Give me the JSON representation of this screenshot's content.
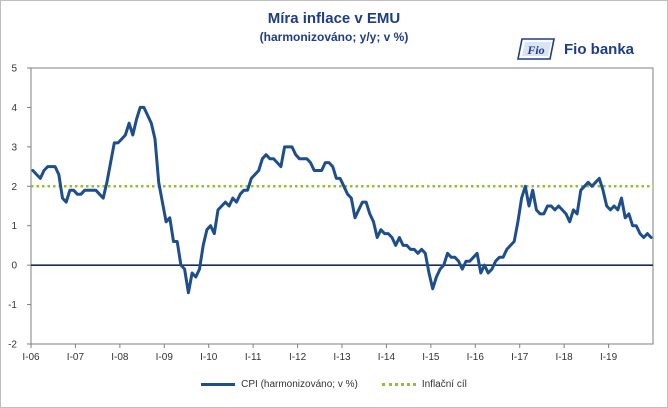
{
  "chart_data": {
    "type": "line",
    "title": "Míra inflace v EMU",
    "subtitle": "(harmonizováno;  y/y; v %)",
    "brand": "Fio banka",
    "ylim": [
      -2,
      5
    ],
    "yticks": [
      "5",
      "4",
      "3",
      "2",
      "1",
      "0",
      "-1",
      "-2"
    ],
    "xticks": [
      "I-06",
      "I-07",
      "I-08",
      "I-09",
      "I-10",
      "I-11",
      "I-12",
      "I-13",
      "I-14",
      "I-15",
      "I-16",
      "I-17",
      "I-18",
      "I-19"
    ],
    "x_start": "2006-01",
    "series": [
      {
        "name": "CPI (harmonizováno; v %)",
        "color": "#1f4e8c",
        "values": [
          2.4,
          2.3,
          2.2,
          2.4,
          2.5,
          2.5,
          2.5,
          2.3,
          1.7,
          1.6,
          1.9,
          1.9,
          1.8,
          1.8,
          1.9,
          1.9,
          1.9,
          1.9,
          1.8,
          1.7,
          2.1,
          2.6,
          3.1,
          3.1,
          3.2,
          3.3,
          3.6,
          3.3,
          3.7,
          4.0,
          4.0,
          3.8,
          3.6,
          3.2,
          2.1,
          1.6,
          1.1,
          1.2,
          0.6,
          0.6,
          0.0,
          -0.1,
          -0.7,
          -0.2,
          -0.3,
          -0.1,
          0.5,
          0.9,
          1.0,
          0.8,
          1.4,
          1.5,
          1.6,
          1.5,
          1.7,
          1.6,
          1.8,
          1.9,
          1.9,
          2.2,
          2.3,
          2.4,
          2.7,
          2.8,
          2.7,
          2.7,
          2.6,
          2.5,
          3.0,
          3.0,
          3.0,
          2.8,
          2.7,
          2.7,
          2.7,
          2.6,
          2.4,
          2.4,
          2.4,
          2.6,
          2.6,
          2.5,
          2.2,
          2.2,
          2.0,
          1.8,
          1.7,
          1.2,
          1.4,
          1.6,
          1.6,
          1.3,
          1.1,
          0.7,
          0.9,
          0.8,
          0.8,
          0.7,
          0.5,
          0.7,
          0.5,
          0.5,
          0.4,
          0.4,
          0.3,
          0.4,
          0.3,
          -0.2,
          -0.6,
          -0.3,
          -0.1,
          0.0,
          0.3,
          0.2,
          0.2,
          0.1,
          -0.1,
          0.1,
          0.1,
          0.2,
          0.3,
          -0.2,
          0.0,
          -0.2,
          -0.1,
          0.1,
          0.2,
          0.2,
          0.4,
          0.5,
          0.6,
          1.1,
          1.7,
          2.0,
          1.5,
          1.9,
          1.4,
          1.3,
          1.3,
          1.5,
          1.5,
          1.4,
          1.5,
          1.4,
          1.3,
          1.1,
          1.4,
          1.3,
          1.9,
          2.0,
          2.1,
          2.0,
          2.1,
          2.2,
          1.9,
          1.5,
          1.4,
          1.5,
          1.4,
          1.7,
          1.2,
          1.3,
          1.0,
          1.0,
          0.8,
          0.7,
          0.8,
          0.7
        ]
      },
      {
        "name": "Inflační cíl",
        "color": "#92c030",
        "value": 2.0
      }
    ],
    "grid": false,
    "legend_position": "bottom"
  }
}
